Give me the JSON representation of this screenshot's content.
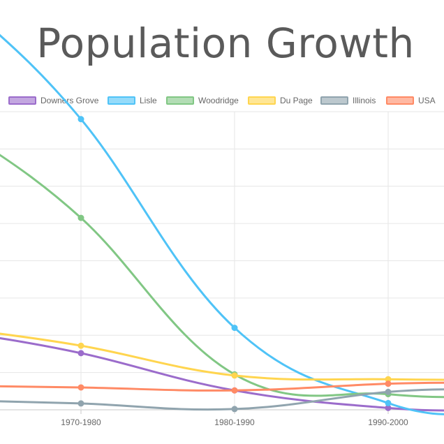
{
  "chart_data": {
    "type": "line",
    "title": "Population Growth",
    "categories": [
      "1970-1980",
      "1980-1990",
      "1990-2000"
    ],
    "legend_position": "top",
    "grid": true,
    "ylim": [
      0,
      80
    ],
    "series": [
      {
        "name": "Downers Grove",
        "color": "#9b6ccb",
        "values": [
          15.2,
          5.2,
          0.5
        ]
      },
      {
        "name": "Lisle",
        "color": "#4fc3f7",
        "values": [
          78.0,
          22.0,
          1.8
        ]
      },
      {
        "name": "Woodridge",
        "color": "#81c784",
        "values": [
          51.5,
          9.5,
          4.2
        ]
      },
      {
        "name": "Du Page",
        "color": "#ffd54f",
        "values": [
          17.2,
          9.2,
          8.2
        ]
      },
      {
        "name": "Illinois",
        "color": "#90a4ae",
        "values": [
          1.7,
          0.2,
          4.8
        ]
      },
      {
        "name": "USA",
        "color": "#ff8a65",
        "values": [
          6.0,
          5.2,
          7.0
        ]
      }
    ]
  }
}
